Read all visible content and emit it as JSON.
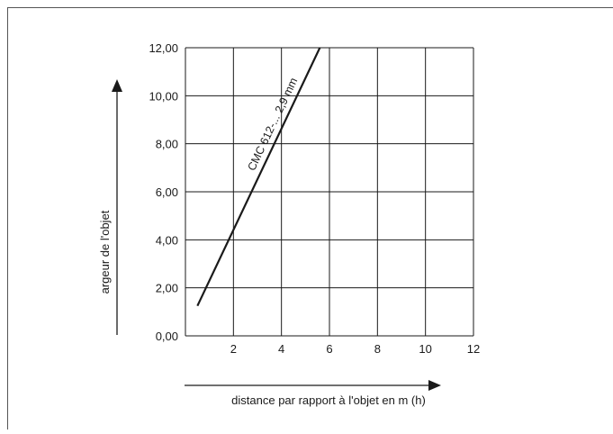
{
  "chart_data": {
    "type": "line",
    "xlabel": "distance par rapport à l'objet en m (h)",
    "ylabel": "argeur de l'objet",
    "xlim": [
      0,
      12
    ],
    "ylim": [
      0,
      12
    ],
    "x_ticks": [
      2,
      4,
      6,
      8,
      10,
      12
    ],
    "y_ticks": [
      "0,00",
      "2,00",
      "4,00",
      "6,00",
      "8,00",
      "10,00",
      "12,00"
    ],
    "grid": true,
    "series": [
      {
        "name": "CMC 612-... 2,9 mm",
        "points": [
          [
            0.5,
            1.25
          ],
          [
            5.6,
            12.0
          ]
        ]
      }
    ]
  }
}
